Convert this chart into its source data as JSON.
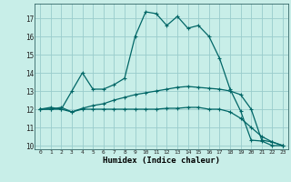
{
  "title": "",
  "xlabel": "Humidex (Indice chaleur)",
  "background_color": "#c8eee8",
  "grid_color": "#99cccc",
  "line_color": "#006666",
  "xlim": [
    -0.5,
    23.5
  ],
  "ylim": [
    9.8,
    17.8
  ],
  "yticks": [
    10,
    11,
    12,
    13,
    14,
    15,
    16,
    17
  ],
  "xticks": [
    0,
    1,
    2,
    3,
    4,
    5,
    6,
    7,
    8,
    9,
    10,
    11,
    12,
    13,
    14,
    15,
    16,
    17,
    18,
    19,
    20,
    21,
    22,
    23
  ],
  "line1_x": [
    0,
    1,
    2,
    3,
    4,
    5,
    6,
    7,
    8,
    9,
    10,
    11,
    12,
    13,
    14,
    15,
    16,
    17,
    18,
    19,
    20,
    21,
    22,
    23
  ],
  "line1_y": [
    12.0,
    12.1,
    12.0,
    13.0,
    14.0,
    13.1,
    13.1,
    13.35,
    13.7,
    16.0,
    17.35,
    17.25,
    16.6,
    17.1,
    16.45,
    16.6,
    16.0,
    14.8,
    13.1,
    11.9,
    10.3,
    10.25,
    10.0,
    10.0
  ],
  "line2_x": [
    0,
    1,
    2,
    3,
    4,
    5,
    6,
    7,
    8,
    9,
    10,
    11,
    12,
    13,
    14,
    15,
    16,
    17,
    18,
    19,
    20,
    21,
    22,
    23
  ],
  "line2_y": [
    12.0,
    12.0,
    12.1,
    11.85,
    12.05,
    12.2,
    12.3,
    12.5,
    12.65,
    12.8,
    12.9,
    13.0,
    13.1,
    13.2,
    13.25,
    13.2,
    13.15,
    13.1,
    13.0,
    12.8,
    12.0,
    10.3,
    10.2,
    10.0
  ],
  "line3_x": [
    0,
    1,
    2,
    3,
    4,
    5,
    6,
    7,
    8,
    9,
    10,
    11,
    12,
    13,
    14,
    15,
    16,
    17,
    18,
    19,
    20,
    21,
    22,
    23
  ],
  "line3_y": [
    12.0,
    12.0,
    12.0,
    11.85,
    12.0,
    12.0,
    12.0,
    12.0,
    12.0,
    12.0,
    12.0,
    12.0,
    12.05,
    12.05,
    12.1,
    12.1,
    12.0,
    12.0,
    11.85,
    11.5,
    11.0,
    10.5,
    10.2,
    10.0
  ]
}
